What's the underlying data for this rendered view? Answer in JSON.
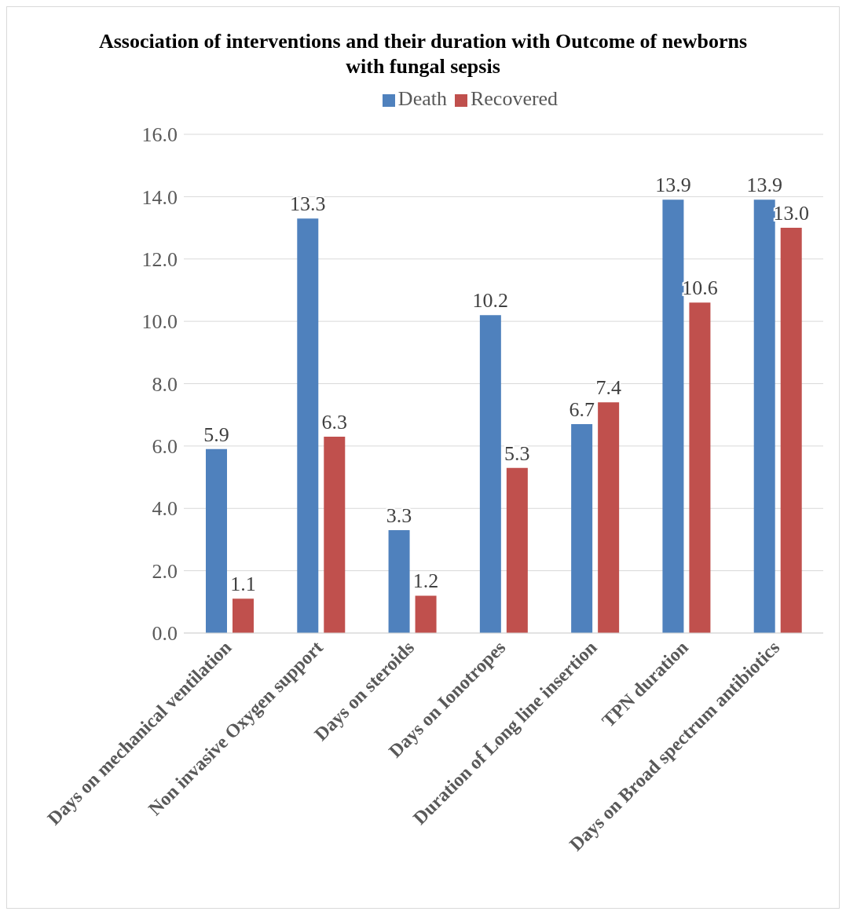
{
  "chart_data": {
    "type": "bar",
    "title": "Association of interventions and their duration with Outcome of newborns with fungal sepsis",
    "categories": [
      "Days on mechanical ventilation",
      "Non invasive Oxygen support",
      "Days on steroids",
      "Days on Ionotropes",
      "Duration of Long line insertion",
      "TPN duration",
      "Days on Broad spectrum antibiotics"
    ],
    "series": [
      {
        "name": "Death",
        "color": "#4f81bd",
        "values": [
          5.9,
          13.3,
          3.3,
          10.2,
          6.7,
          13.9,
          13.9
        ],
        "value_labels": [
          "5.9",
          "13.3",
          "3.3",
          "10.2",
          "6.7",
          "13.9",
          "13.9"
        ]
      },
      {
        "name": "Recovered",
        "color": "#c0504d",
        "values": [
          1.1,
          6.3,
          1.2,
          5.3,
          7.4,
          10.6,
          13.0
        ],
        "value_labels": [
          "1.1",
          "6.3",
          "1.2",
          "5.3",
          "7.4",
          "10.6",
          "13.0"
        ]
      }
    ],
    "ylim": [
      0,
      16
    ],
    "yticks": [
      {
        "value": 0,
        "label": "0.0"
      },
      {
        "value": 2,
        "label": "2.0"
      },
      {
        "value": 4,
        "label": "4.0"
      },
      {
        "value": 6,
        "label": "6.0"
      },
      {
        "value": 8,
        "label": "8.0"
      },
      {
        "value": 10,
        "label": "10.0"
      },
      {
        "value": 12,
        "label": "12.0"
      },
      {
        "value": 14,
        "label": "14.0"
      },
      {
        "value": 16,
        "label": "16.0"
      }
    ],
    "grid": "y",
    "legend": "top"
  }
}
